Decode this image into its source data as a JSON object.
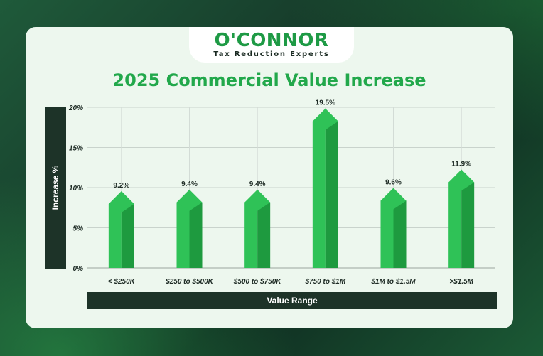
{
  "logo": {
    "name": "O'CONNOR",
    "tagline": "Tax Reduction Experts"
  },
  "colors": {
    "bar_light": "#2fc257",
    "bar_dark": "#1e9a3f",
    "accent": "#22a84b",
    "label_bar": "#1d3328"
  },
  "chart_data": {
    "type": "bar",
    "title": "2025 Commercial Value Increase",
    "xlabel": "Value Range",
    "ylabel": "Increase %",
    "categories": [
      "< $250K",
      "$250 to $500K",
      "$500 to $750K",
      "$750 to $1M",
      "$1M to $1.5M",
      ">$1.5M"
    ],
    "values": [
      9.2,
      9.4,
      9.4,
      19.5,
      9.6,
      11.9
    ],
    "value_labels": [
      "9.2%",
      "9.4%",
      "9.4%",
      "19.5%",
      "9.6%",
      "11.9%"
    ],
    "yticks": [
      "0%",
      "5%",
      "10%",
      "15%",
      "20%"
    ],
    "ytick_values": [
      0,
      5,
      10,
      15,
      20
    ],
    "ylim": [
      0,
      20
    ],
    "grid": true,
    "legend": "none"
  }
}
